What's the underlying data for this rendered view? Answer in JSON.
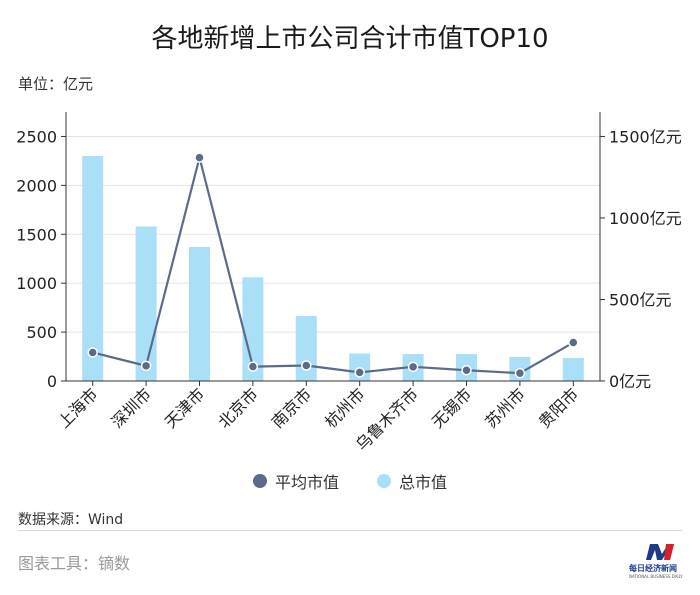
{
  "title": "各地新增上市公司合计市值TOP10",
  "unit_label": "单位：亿元",
  "source": "数据来源：Wind",
  "tool": "图表工具：镝数",
  "logo": {
    "name": "每日经济新闻",
    "sub": "NATIONAL BUSINESS DAILY"
  },
  "colors": {
    "bar": "#aadff8",
    "line": "#5b6b8c",
    "grid": "#e3e3e3",
    "axis": "#333333"
  },
  "chart_data": {
    "type": "bar",
    "categories": [
      "上海市",
      "深圳市",
      "天津市",
      "北京市",
      "南京市",
      "杭州市",
      "乌鲁木齐市",
      "无锡市",
      "苏州市",
      "贵阳市"
    ],
    "series": [
      {
        "name": "总市值",
        "type": "bar",
        "axis": "left",
        "values": [
          2300,
          1580,
          1370,
          1060,
          665,
          280,
          275,
          275,
          245,
          235
        ]
      },
      {
        "name": "平均市值",
        "type": "line",
        "axis": "right",
        "values": [
          175,
          93,
          1370,
          88,
          95,
          53,
          87,
          66,
          48,
          236
        ]
      }
    ],
    "y_left": {
      "min": 0,
      "max": 2750,
      "ticks": [
        0,
        500,
        1000,
        1500,
        2000,
        2500
      ]
    },
    "y_right": {
      "min": 0,
      "max": 1650,
      "ticks": [
        0,
        500,
        1000,
        1500
      ],
      "tick_labels": [
        "0亿元",
        "500亿元",
        "1000亿元",
        "1500亿元"
      ]
    },
    "legend": [
      "平均市值",
      "总市值"
    ],
    "legend_position": "bottom",
    "grid": true
  }
}
